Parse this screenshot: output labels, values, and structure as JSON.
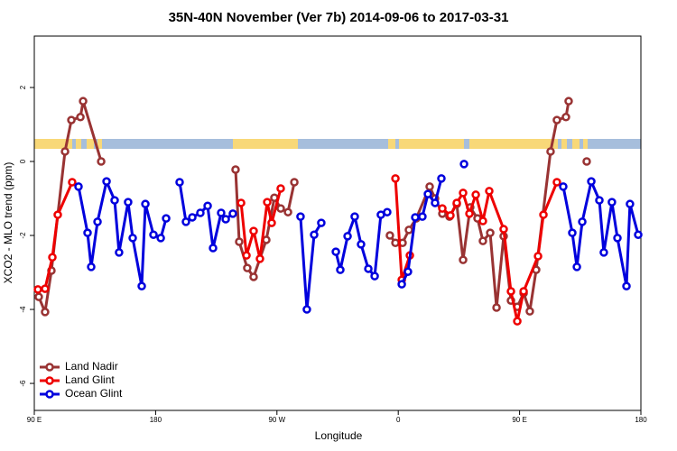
{
  "chart_data": {
    "type": "line",
    "title": "35N-40N November (Ver 7b)   2014-09-06 to 2017-03-31",
    "xlabel": "Longitude",
    "ylabel": "XCO2 - MLO trend (ppm)",
    "xlim": [
      90,
      540
    ],
    "ylim": [
      -6.73,
      3.39
    ],
    "xticks": [
      {
        "value": 90,
        "label": "90 E"
      },
      180,
      {
        "value": 270,
        "label": "90 W"
      },
      {
        "value": 360,
        "label": "0"
      },
      {
        "value": 450,
        "label": "90 E"
      },
      {
        "value": 540,
        "label": "180"
      }
    ],
    "yticks": [
      2,
      0,
      -2,
      -4,
      -6
    ],
    "legend": "bottom-left",
    "series": [
      {
        "name": "Land Nadir",
        "color": "#993333",
        "x": [
          93.3,
          98.0,
          102.7,
          112.8,
          117.5,
          124.2,
          126.2,
          139.6,
          null,
          239.3,
          242.0,
          248.0,
          252.7,
          262.1,
          268.1,
          272.8,
          278.2,
          282.9,
          null,
          353.8,
          357.9,
          363.2,
          367.9,
          373.3,
          383.3,
          387.3,
          392.7,
          398.0,
          403.4,
          408.1,
          413.4,
          418.8,
          422.8,
          428.2,
          432.9,
          438.2,
          443.6,
          448.3,
          453.0,
          457.6,
          462.3,
          473.0,
          477.7,
          484.4,
          486.4,
          null,
          499.8
        ],
        "values": [
          -3.66,
          -4.07,
          -2.95,
          0.27,
          1.12,
          1.2,
          1.63,
          0.0,
          null,
          -0.22,
          -2.17,
          -2.88,
          -3.12,
          -2.12,
          -0.98,
          -1.27,
          -1.37,
          -0.56,
          null,
          -2.0,
          -2.2,
          -2.2,
          -1.85,
          -1.54,
          -0.68,
          -1.0,
          -1.41,
          -1.49,
          -1.15,
          -2.66,
          -1.24,
          -1.54,
          -2.15,
          -1.93,
          -3.95,
          -2.02,
          -3.76,
          -3.93,
          -3.56,
          -4.05,
          -2.93,
          0.27,
          1.12,
          1.2,
          1.63,
          null,
          0.0
        ]
      },
      {
        "name": "Land Glint",
        "color": "#ee0000",
        "x": [
          92.7,
          98.0,
          103.4,
          107.4,
          118.1,
          null,
          243.4,
          247.4,
          252.7,
          257.4,
          262.8,
          266.1,
          272.8,
          null,
          357.9,
          362.6,
          368.6,
          null,
          392.7,
          398.7,
          403.4,
          408.1,
          412.8,
          417.5,
          422.8,
          427.5,
          438.2,
          443.6,
          448.3,
          453.0,
          463.7,
          467.7,
          477.7
        ],
        "values": [
          -3.46,
          -3.44,
          -2.59,
          -1.44,
          -0.56,
          null,
          -1.12,
          -2.54,
          -1.88,
          -2.63,
          -1.1,
          -1.66,
          -0.73,
          null,
          -0.46,
          -3.2,
          -2.54,
          null,
          -1.27,
          -1.46,
          -1.12,
          -0.85,
          -1.41,
          -0.9,
          -1.61,
          -0.8,
          -1.83,
          -3.51,
          -4.32,
          -3.51,
          -2.56,
          -1.44,
          -0.56
        ]
      },
      {
        "name": "Ocean Glint",
        "color": "#0000dd",
        "x": [
          122.8,
          129.5,
          132.2,
          136.9,
          143.6,
          149.6,
          152.9,
          159.6,
          163.0,
          169.7,
          172.4,
          178.4,
          183.8,
          187.8,
          null,
          197.8,
          202.5,
          207.2,
          213.2,
          218.6,
          222.6,
          228.6,
          232.0,
          237.3,
          null,
          287.5,
          292.2,
          297.6,
          302.9,
          null,
          313.7,
          317.0,
          322.4,
          327.7,
          332.4,
          337.8,
          342.5,
          347.1,
          351.8,
          null,
          362.6,
          367.2,
          372.6,
          377.9,
          382.0,
          387.3,
          392.0,
          null,
          408.8,
          null,
          482.4,
          489.1,
          492.5,
          496.5,
          503.2,
          509.2,
          512.5,
          518.5,
          522.6,
          529.3,
          531.9,
          538.0
        ],
        "values": [
          -0.68,
          -1.93,
          -2.85,
          -1.63,
          -0.54,
          -1.05,
          -2.46,
          -1.1,
          -2.07,
          -3.37,
          -1.15,
          -1.98,
          -2.07,
          -1.54,
          null,
          -0.56,
          -1.63,
          -1.51,
          -1.39,
          -1.2,
          -2.34,
          -1.39,
          -1.56,
          -1.41,
          null,
          -1.49,
          -4.0,
          -1.98,
          -1.66,
          null,
          -2.44,
          -2.93,
          -2.02,
          -1.49,
          -2.24,
          -2.9,
          -3.1,
          -1.44,
          -1.37,
          null,
          -3.32,
          -2.98,
          -1.51,
          -1.49,
          -0.88,
          -1.12,
          -0.46,
          null,
          -0.07,
          null,
          -0.68,
          -1.93,
          -2.85,
          -1.63,
          -0.54,
          -1.05,
          -2.46,
          -1.1,
          -2.07,
          -3.37,
          -1.15,
          -1.98
        ]
      }
    ]
  }
}
